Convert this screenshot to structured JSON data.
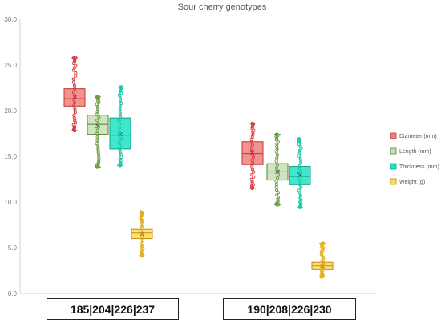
{
  "chart_data": {
    "type": "box",
    "title": "Sour cherry genotypes",
    "xlabel": "",
    "ylabel": "",
    "ylim": [
      0,
      30
    ],
    "yticks": [
      "0.0",
      "5.0",
      "10.0",
      "15.0",
      "20.0",
      "25.0",
      "30.0"
    ],
    "grid": false,
    "legend_position": "right",
    "categories": [
      "185|204|226|237",
      "190|208|226|230"
    ],
    "series": [
      {
        "name": "Diameter (mm)",
        "color": "#f08080",
        "stroke": "#c0392b",
        "points_color": "#d9383a",
        "groups": [
          {
            "min": 17.8,
            "q1": 20.5,
            "median": 21.3,
            "q3": 22.4,
            "max": 25.8,
            "mean": 21.5
          },
          {
            "min": 11.5,
            "q1": 14.1,
            "median": 15.3,
            "q3": 16.6,
            "max": 18.6,
            "mean": 15.4
          }
        ]
      },
      {
        "name": "Length (mm)",
        "color": "#c5e0b4",
        "stroke": "#548235",
        "points_color": "#6a9a3e",
        "groups": [
          {
            "min": 13.8,
            "q1": 17.4,
            "median": 18.5,
            "q3": 19.5,
            "max": 21.5,
            "mean": 18.3
          },
          {
            "min": 9.7,
            "q1": 12.4,
            "median": 13.3,
            "q3": 14.2,
            "max": 17.4,
            "mean": 13.3
          }
        ]
      },
      {
        "name": "Thickness (mm)",
        "color": "#1ee3c4",
        "stroke": "#16a085",
        "points_color": "#14c9a8",
        "groups": [
          {
            "min": 14.0,
            "q1": 15.8,
            "median": 17.3,
            "q3": 19.2,
            "max": 22.6,
            "mean": 17.4
          },
          {
            "min": 9.4,
            "q1": 11.9,
            "median": 12.8,
            "q3": 13.9,
            "max": 16.9,
            "mean": 13.0
          }
        ]
      },
      {
        "name": "Weight (g)",
        "color": "#ffd966",
        "stroke": "#bf9000",
        "points_color": "#e0b020",
        "groups": [
          {
            "min": 4.1,
            "q1": 6.0,
            "median": 6.6,
            "q3": 7.0,
            "max": 8.9,
            "mean": 6.5
          },
          {
            "min": 1.8,
            "q1": 2.6,
            "median": 3.0,
            "q3": 3.4,
            "max": 5.5,
            "mean": 3.0
          }
        ]
      }
    ]
  }
}
